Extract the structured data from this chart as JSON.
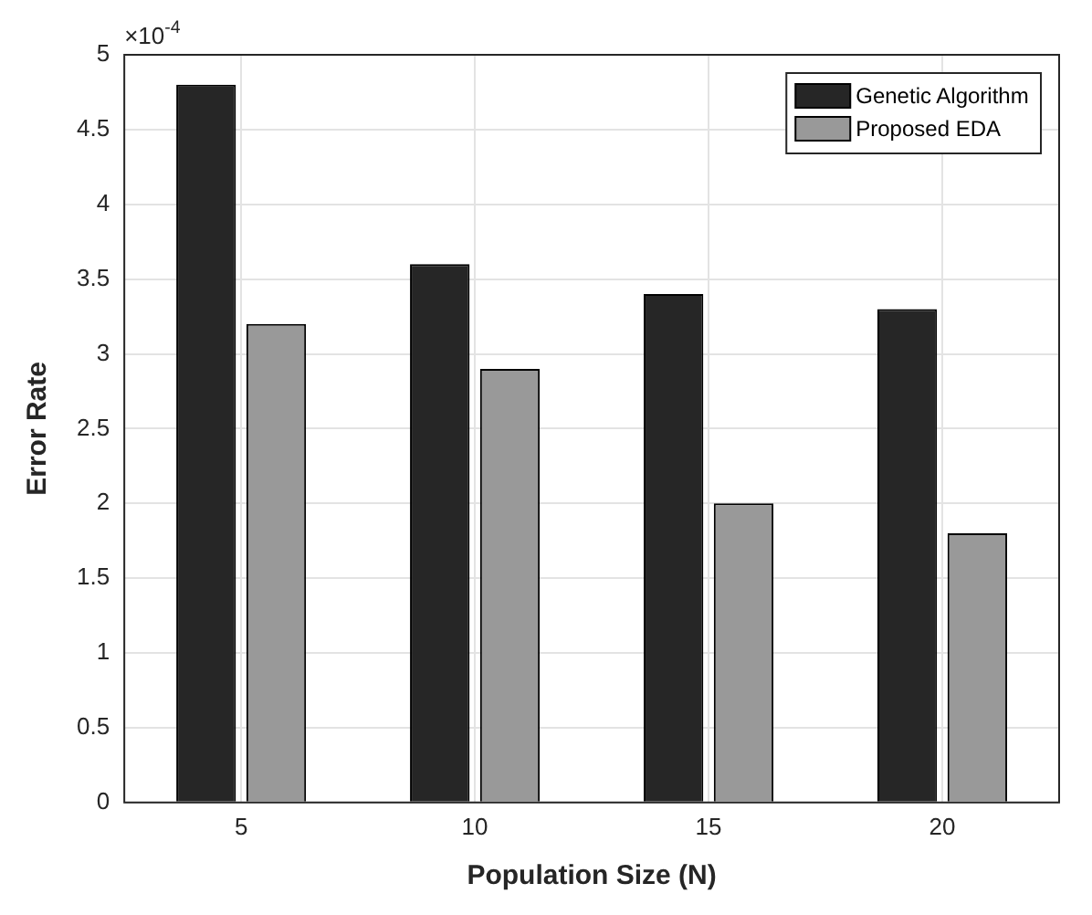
{
  "chart_data": {
    "type": "bar",
    "xlabel": "Population Size (N)",
    "ylabel": "Error Rate",
    "categories": [
      "5",
      "10",
      "15",
      "20"
    ],
    "series": [
      {
        "name": "Genetic Algorithm",
        "color": "#262626",
        "values": [
          4.8,
          3.6,
          3.4,
          3.3
        ]
      },
      {
        "name": "Proposed EDA",
        "color": "#999999",
        "values": [
          3.2,
          2.9,
          2.0,
          1.8
        ]
      }
    ],
    "ylim": [
      0,
      5
    ],
    "yticks": [
      0,
      0.5,
      1,
      1.5,
      2,
      2.5,
      3,
      3.5,
      4,
      4.5,
      5
    ],
    "annotations": [
      "×10$^{-4}$"
    ],
    "grid": true,
    "legend": "top right"
  }
}
